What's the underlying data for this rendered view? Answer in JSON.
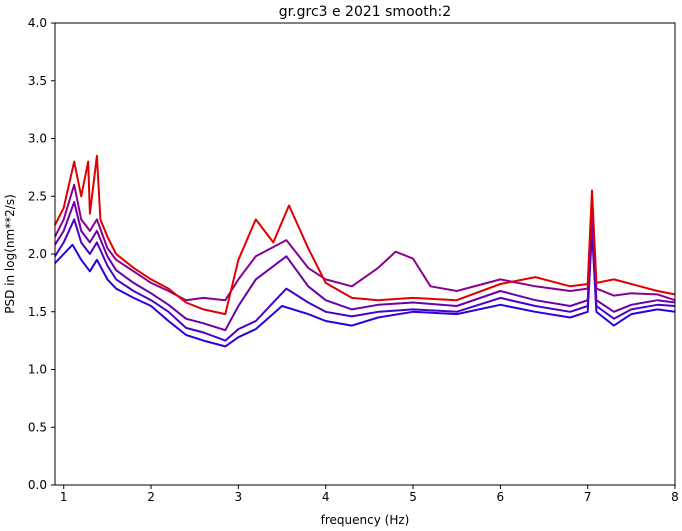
{
  "chart_data": {
    "type": "line",
    "title": "gr.grc3 e 2021 smooth:2",
    "xlabel": "frequency (Hz)",
    "ylabel": "PSD in log(nm**2/s)",
    "xlim": [
      0.9,
      8.0
    ],
    "ylim": [
      0.0,
      4.0
    ],
    "x_ticks": [
      "1",
      "2",
      "3",
      "4",
      "5",
      "6",
      "7",
      "8"
    ],
    "y_ticks": [
      "0.0",
      "0.5",
      "1.0",
      "1.5",
      "2.0",
      "2.5",
      "3.0",
      "3.5",
      "4.0"
    ],
    "grid": false,
    "legend": "none",
    "series": [
      {
        "color": "#2a00e0",
        "points": [
          [
            0.9,
            1.92
          ],
          [
            1.0,
            2.0
          ],
          [
            1.1,
            2.08
          ],
          [
            1.2,
            1.95
          ],
          [
            1.3,
            1.85
          ],
          [
            1.38,
            1.95
          ],
          [
            1.5,
            1.78
          ],
          [
            1.6,
            1.7
          ],
          [
            1.8,
            1.62
          ],
          [
            2.0,
            1.55
          ],
          [
            2.2,
            1.42
          ],
          [
            2.4,
            1.3
          ],
          [
            2.6,
            1.25
          ],
          [
            2.85,
            1.2
          ],
          [
            3.0,
            1.28
          ],
          [
            3.2,
            1.35
          ],
          [
            3.5,
            1.55
          ],
          [
            3.8,
            1.48
          ],
          [
            4.0,
            1.42
          ],
          [
            4.3,
            1.38
          ],
          [
            4.6,
            1.45
          ],
          [
            5.0,
            1.5
          ],
          [
            5.5,
            1.48
          ],
          [
            6.0,
            1.56
          ],
          [
            6.4,
            1.5
          ],
          [
            6.8,
            1.45
          ],
          [
            7.0,
            1.5
          ],
          [
            7.05,
            2.2
          ],
          [
            7.1,
            1.5
          ],
          [
            7.3,
            1.38
          ],
          [
            7.5,
            1.48
          ],
          [
            7.8,
            1.52
          ],
          [
            8.0,
            1.5
          ]
        ]
      },
      {
        "color": "#4a00c8",
        "points": [
          [
            0.9,
            1.98
          ],
          [
            1.0,
            2.1
          ],
          [
            1.12,
            2.3
          ],
          [
            1.2,
            2.1
          ],
          [
            1.3,
            2.0
          ],
          [
            1.38,
            2.1
          ],
          [
            1.5,
            1.9
          ],
          [
            1.6,
            1.78
          ],
          [
            1.8,
            1.68
          ],
          [
            2.0,
            1.6
          ],
          [
            2.2,
            1.5
          ],
          [
            2.4,
            1.36
          ],
          [
            2.6,
            1.32
          ],
          [
            2.85,
            1.25
          ],
          [
            3.0,
            1.35
          ],
          [
            3.2,
            1.42
          ],
          [
            3.55,
            1.7
          ],
          [
            3.8,
            1.58
          ],
          [
            4.0,
            1.5
          ],
          [
            4.3,
            1.46
          ],
          [
            4.6,
            1.5
          ],
          [
            5.0,
            1.52
          ],
          [
            5.5,
            1.5
          ],
          [
            6.0,
            1.62
          ],
          [
            6.4,
            1.55
          ],
          [
            6.8,
            1.5
          ],
          [
            7.0,
            1.55
          ],
          [
            7.05,
            2.3
          ],
          [
            7.1,
            1.55
          ],
          [
            7.3,
            1.44
          ],
          [
            7.5,
            1.52
          ],
          [
            7.8,
            1.56
          ],
          [
            8.0,
            1.55
          ]
        ]
      },
      {
        "color": "#6a00a8",
        "points": [
          [
            0.9,
            2.08
          ],
          [
            1.0,
            2.2
          ],
          [
            1.12,
            2.45
          ],
          [
            1.2,
            2.2
          ],
          [
            1.3,
            2.1
          ],
          [
            1.38,
            2.2
          ],
          [
            1.5,
            1.98
          ],
          [
            1.6,
            1.86
          ],
          [
            1.8,
            1.75
          ],
          [
            2.0,
            1.66
          ],
          [
            2.2,
            1.56
          ],
          [
            2.4,
            1.44
          ],
          [
            2.6,
            1.4
          ],
          [
            2.85,
            1.34
          ],
          [
            3.0,
            1.55
          ],
          [
            3.2,
            1.78
          ],
          [
            3.55,
            1.98
          ],
          [
            3.8,
            1.72
          ],
          [
            4.0,
            1.6
          ],
          [
            4.3,
            1.52
          ],
          [
            4.6,
            1.56
          ],
          [
            5.0,
            1.58
          ],
          [
            5.5,
            1.55
          ],
          [
            6.0,
            1.68
          ],
          [
            6.4,
            1.6
          ],
          [
            6.8,
            1.55
          ],
          [
            7.0,
            1.6
          ],
          [
            7.05,
            2.4
          ],
          [
            7.1,
            1.6
          ],
          [
            7.3,
            1.5
          ],
          [
            7.5,
            1.56
          ],
          [
            7.8,
            1.6
          ],
          [
            8.0,
            1.58
          ]
        ]
      },
      {
        "color": "#8a0090",
        "points": [
          [
            0.9,
            2.15
          ],
          [
            1.0,
            2.3
          ],
          [
            1.12,
            2.6
          ],
          [
            1.2,
            2.3
          ],
          [
            1.3,
            2.2
          ],
          [
            1.38,
            2.3
          ],
          [
            1.5,
            2.05
          ],
          [
            1.6,
            1.95
          ],
          [
            1.8,
            1.85
          ],
          [
            2.0,
            1.75
          ],
          [
            2.2,
            1.68
          ],
          [
            2.4,
            1.6
          ],
          [
            2.6,
            1.62
          ],
          [
            2.85,
            1.6
          ],
          [
            3.0,
            1.78
          ],
          [
            3.2,
            1.98
          ],
          [
            3.55,
            2.12
          ],
          [
            3.8,
            1.88
          ],
          [
            4.0,
            1.78
          ],
          [
            4.3,
            1.72
          ],
          [
            4.6,
            1.88
          ],
          [
            4.8,
            2.02
          ],
          [
            5.0,
            1.96
          ],
          [
            5.2,
            1.72
          ],
          [
            5.5,
            1.68
          ],
          [
            6.0,
            1.78
          ],
          [
            6.4,
            1.72
          ],
          [
            6.8,
            1.68
          ],
          [
            7.0,
            1.7
          ],
          [
            7.05,
            2.5
          ],
          [
            7.1,
            1.7
          ],
          [
            7.3,
            1.64
          ],
          [
            7.5,
            1.66
          ],
          [
            7.8,
            1.65
          ],
          [
            8.0,
            1.6
          ]
        ]
      },
      {
        "color": "#e00000",
        "points": [
          [
            0.9,
            2.25
          ],
          [
            1.0,
            2.4
          ],
          [
            1.12,
            2.8
          ],
          [
            1.2,
            2.5
          ],
          [
            1.28,
            2.8
          ],
          [
            1.3,
            2.35
          ],
          [
            1.38,
            2.85
          ],
          [
            1.42,
            2.3
          ],
          [
            1.5,
            2.15
          ],
          [
            1.6,
            2.0
          ],
          [
            1.8,
            1.88
          ],
          [
            2.0,
            1.78
          ],
          [
            2.2,
            1.7
          ],
          [
            2.4,
            1.58
          ],
          [
            2.6,
            1.52
          ],
          [
            2.85,
            1.48
          ],
          [
            3.0,
            1.95
          ],
          [
            3.2,
            2.3
          ],
          [
            3.4,
            2.1
          ],
          [
            3.58,
            2.42
          ],
          [
            3.8,
            2.05
          ],
          [
            4.0,
            1.75
          ],
          [
            4.3,
            1.62
          ],
          [
            4.6,
            1.6
          ],
          [
            5.0,
            1.62
          ],
          [
            5.5,
            1.6
          ],
          [
            6.0,
            1.74
          ],
          [
            6.4,
            1.8
          ],
          [
            6.6,
            1.76
          ],
          [
            6.8,
            1.72
          ],
          [
            7.0,
            1.74
          ],
          [
            7.05,
            2.55
          ],
          [
            7.1,
            1.75
          ],
          [
            7.3,
            1.78
          ],
          [
            7.5,
            1.74
          ],
          [
            7.8,
            1.68
          ],
          [
            8.0,
            1.65
          ]
        ]
      }
    ]
  }
}
